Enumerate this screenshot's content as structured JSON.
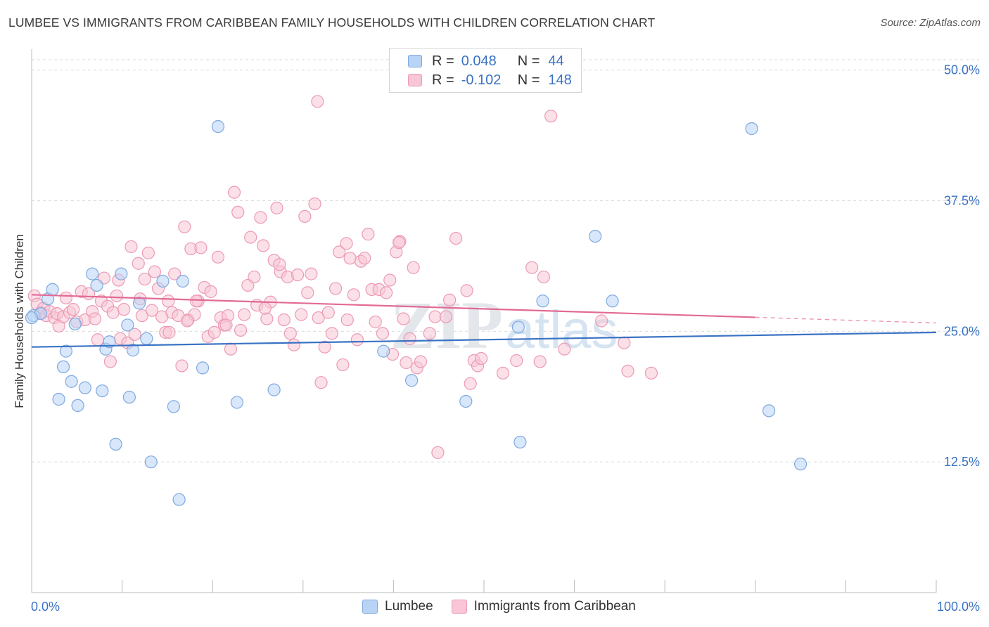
{
  "title": "LUMBEE VS IMMIGRANTS FROM CARIBBEAN FAMILY HOUSEHOLDS WITH CHILDREN CORRELATION CHART",
  "source": "Source: ZipAtlas.com",
  "watermark": {
    "zip": "ZIP",
    "atlas": "atlas"
  },
  "legend": {
    "rows": [
      {
        "r_label": "R =",
        "r_value": "0.048",
        "n_label": "N =",
        "n_value": "44",
        "color": "#b8d3f5",
        "stroke": "#7fa9e0"
      },
      {
        "r_label": "R =",
        "r_value": "-0.102",
        "n_label": "N =",
        "n_value": "148",
        "color": "#f8c6d6",
        "stroke": "#ec9ab5"
      }
    ]
  },
  "bottom_legend": [
    {
      "label": "Lumbee",
      "color": "#b8d3f5",
      "stroke": "#7fa9e0"
    },
    {
      "label": "Immigrants from Caribbean",
      "color": "#f8c6d6",
      "stroke": "#ec9ab5"
    }
  ],
  "chart_data": {
    "type": "scatter",
    "title": "LUMBEE VS IMMIGRANTS FROM CARIBBEAN FAMILY HOUSEHOLDS WITH CHILDREN CORRELATION CHART",
    "xlabel": "",
    "ylabel": "Family Households with Children",
    "xlim": [
      0,
      100
    ],
    "ylim": [
      0,
      52
    ],
    "x_tick_labels": [
      "0.0%",
      "100.0%"
    ],
    "y_ticks": [
      12.5,
      25.0,
      37.5,
      50.0
    ],
    "y_tick_labels": [
      "12.5%",
      "25.0%",
      "37.5%",
      "50.0%"
    ],
    "grid": true,
    "legend_position": "top-center",
    "series": [
      {
        "name": "Lumbee",
        "color": "#7fa9e0",
        "fill": "#b8d3f5",
        "trend_color": "#3a72c4",
        "trend": {
          "x0": 0,
          "y0": 23.5,
          "x1": 100,
          "y1": 24.9,
          "dashed_from": null
        },
        "points": [
          [
            0.2,
            26.5
          ],
          [
            1.0,
            26.7
          ],
          [
            1.8,
            28.1
          ],
          [
            2.3,
            29.0
          ],
          [
            3.0,
            18.5
          ],
          [
            3.5,
            21.6
          ],
          [
            3.8,
            23.1
          ],
          [
            4.4,
            20.2
          ],
          [
            4.8,
            25.7
          ],
          [
            5.1,
            17.9
          ],
          [
            5.9,
            19.6
          ],
          [
            6.7,
            30.5
          ],
          [
            7.2,
            29.4
          ],
          [
            7.8,
            19.3
          ],
          [
            8.2,
            23.3
          ],
          [
            8.6,
            24.0
          ],
          [
            9.3,
            14.2
          ],
          [
            9.9,
            30.5
          ],
          [
            10.6,
            25.6
          ],
          [
            10.8,
            18.7
          ],
          [
            11.2,
            23.2
          ],
          [
            11.9,
            27.7
          ],
          [
            12.7,
            24.3
          ],
          [
            13.2,
            12.5
          ],
          [
            14.5,
            29.8
          ],
          [
            15.7,
            17.8
          ],
          [
            16.3,
            8.9
          ],
          [
            16.7,
            29.8
          ],
          [
            18.9,
            21.5
          ],
          [
            20.6,
            44.6
          ],
          [
            22.7,
            18.2
          ],
          [
            26.8,
            19.4
          ],
          [
            38.9,
            23.1
          ],
          [
            42.0,
            20.3
          ],
          [
            48.0,
            18.3
          ],
          [
            53.8,
            25.4
          ],
          [
            54.0,
            14.4
          ],
          [
            56.5,
            27.9
          ],
          [
            62.3,
            34.1
          ],
          [
            64.2,
            27.9
          ],
          [
            79.6,
            44.4
          ],
          [
            81.5,
            17.4
          ],
          [
            85.0,
            12.3
          ],
          [
            0.0,
            26.3
          ]
        ]
      },
      {
        "name": "Immigrants from Caribbean",
        "color": "#ec9ab5",
        "fill": "#f8c6d6",
        "trend_color": "#e26a94",
        "trend": {
          "x0": 0,
          "y0": 28.5,
          "x1": 100,
          "y1": 25.8,
          "dashed_from": 80
        },
        "points": [
          [
            0.3,
            28.4
          ],
          [
            0.6,
            27.6
          ],
          [
            1.0,
            26.8
          ],
          [
            1.3,
            27.2
          ],
          [
            1.6,
            26.5
          ],
          [
            2.0,
            26.9
          ],
          [
            2.5,
            26.3
          ],
          [
            2.8,
            26.7
          ],
          [
            3.0,
            25.5
          ],
          [
            3.5,
            26.4
          ],
          [
            3.8,
            28.2
          ],
          [
            4.2,
            26.8
          ],
          [
            4.6,
            27.1
          ],
          [
            5.0,
            25.9
          ],
          [
            5.5,
            28.8
          ],
          [
            5.9,
            26.1
          ],
          [
            6.3,
            28.6
          ],
          [
            6.7,
            26.9
          ],
          [
            7.0,
            26.2
          ],
          [
            7.3,
            24.2
          ],
          [
            7.7,
            27.9
          ],
          [
            8.0,
            30.1
          ],
          [
            8.4,
            27.4
          ],
          [
            8.7,
            22.1
          ],
          [
            9.0,
            26.8
          ],
          [
            9.4,
            28.4
          ],
          [
            9.8,
            24.3
          ],
          [
            10.2,
            27.1
          ],
          [
            10.6,
            23.9
          ],
          [
            11.0,
            33.1
          ],
          [
            11.4,
            24.7
          ],
          [
            11.8,
            31.5
          ],
          [
            12.2,
            26.5
          ],
          [
            12.5,
            30.0
          ],
          [
            12.9,
            32.5
          ],
          [
            13.3,
            27.0
          ],
          [
            13.6,
            30.7
          ],
          [
            14.0,
            29.1
          ],
          [
            14.4,
            26.4
          ],
          [
            14.8,
            24.9
          ],
          [
            15.1,
            27.9
          ],
          [
            15.5,
            26.8
          ],
          [
            15.8,
            30.5
          ],
          [
            16.2,
            26.5
          ],
          [
            16.6,
            21.7
          ],
          [
            16.9,
            35.0
          ],
          [
            17.3,
            26.1
          ],
          [
            17.6,
            32.9
          ],
          [
            18.0,
            26.6
          ],
          [
            18.4,
            27.9
          ],
          [
            18.7,
            33.0
          ],
          [
            19.1,
            29.2
          ],
          [
            19.5,
            24.5
          ],
          [
            19.8,
            28.8
          ],
          [
            20.2,
            24.9
          ],
          [
            20.6,
            32.1
          ],
          [
            20.9,
            26.3
          ],
          [
            21.3,
            25.6
          ],
          [
            21.7,
            26.5
          ],
          [
            22.0,
            23.3
          ],
          [
            22.4,
            38.3
          ],
          [
            22.8,
            36.4
          ],
          [
            23.1,
            25.1
          ],
          [
            23.5,
            26.6
          ],
          [
            23.9,
            29.4
          ],
          [
            24.2,
            34.0
          ],
          [
            24.6,
            30.2
          ],
          [
            24.9,
            27.5
          ],
          [
            25.3,
            35.9
          ],
          [
            25.6,
            33.2
          ],
          [
            26.0,
            26.2
          ],
          [
            26.4,
            27.8
          ],
          [
            26.8,
            31.8
          ],
          [
            27.1,
            36.8
          ],
          [
            27.5,
            30.7
          ],
          [
            27.9,
            26.1
          ],
          [
            28.3,
            30.2
          ],
          [
            28.6,
            24.8
          ],
          [
            29.0,
            23.7
          ],
          [
            29.4,
            30.4
          ],
          [
            29.8,
            26.6
          ],
          [
            30.2,
            36.0
          ],
          [
            30.5,
            28.7
          ],
          [
            30.9,
            30.5
          ],
          [
            31.3,
            37.2
          ],
          [
            31.7,
            26.3
          ],
          [
            32.0,
            20.1
          ],
          [
            32.4,
            23.5
          ],
          [
            32.8,
            26.8
          ],
          [
            33.2,
            24.8
          ],
          [
            33.6,
            29.1
          ],
          [
            34.0,
            32.6
          ],
          [
            34.4,
            21.8
          ],
          [
            34.8,
            33.4
          ],
          [
            35.2,
            32.0
          ],
          [
            35.6,
            28.5
          ],
          [
            36.0,
            24.2
          ],
          [
            36.4,
            31.7
          ],
          [
            36.8,
            32.0
          ],
          [
            37.2,
            34.3
          ],
          [
            37.6,
            29.0
          ],
          [
            38.0,
            25.9
          ],
          [
            38.4,
            29.0
          ],
          [
            38.8,
            24.8
          ],
          [
            39.2,
            28.7
          ],
          [
            39.6,
            29.9
          ],
          [
            39.9,
            22.8
          ],
          [
            40.3,
            32.6
          ],
          [
            40.7,
            33.6
          ],
          [
            41.1,
            26.2
          ],
          [
            41.4,
            22.0
          ],
          [
            41.8,
            24.3
          ],
          [
            42.2,
            31.1
          ],
          [
            42.6,
            21.5
          ],
          [
            43.0,
            22.1
          ],
          [
            44.6,
            26.4
          ],
          [
            44.9,
            13.4
          ],
          [
            45.8,
            26.4
          ],
          [
            46.2,
            28.0
          ],
          [
            46.9,
            33.9
          ],
          [
            48.1,
            28.9
          ],
          [
            48.5,
            20.0
          ],
          [
            48.9,
            22.2
          ],
          [
            49.3,
            21.7
          ],
          [
            49.7,
            22.4
          ],
          [
            52.1,
            21.0
          ],
          [
            53.6,
            22.2
          ],
          [
            55.3,
            31.1
          ],
          [
            56.2,
            22.1
          ],
          [
            56.6,
            30.2
          ],
          [
            58.9,
            23.3
          ],
          [
            63.0,
            26.0
          ],
          [
            65.5,
            23.9
          ],
          [
            65.9,
            21.2
          ],
          [
            68.5,
            21.0
          ],
          [
            31.6,
            47.0
          ],
          [
            57.4,
            45.6
          ],
          [
            15.2,
            24.9
          ],
          [
            17.2,
            26.0
          ],
          [
            25.8,
            27.2
          ],
          [
            34.9,
            26.1
          ],
          [
            40.6,
            33.5
          ],
          [
            18.2,
            27.9
          ],
          [
            12.0,
            28.1
          ],
          [
            9.6,
            29.9
          ],
          [
            21.5,
            25.6
          ],
          [
            27.4,
            31.4
          ],
          [
            44.0,
            24.8
          ]
        ]
      }
    ]
  }
}
